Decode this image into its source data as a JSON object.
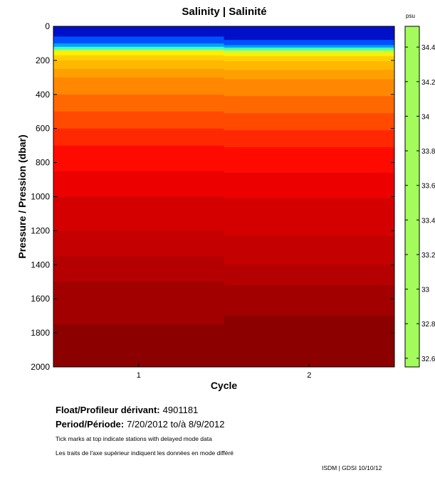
{
  "title": "Salinity | Salinité",
  "info": {
    "float_label": "Float/Profileur dérivant:",
    "float_id": "4901181",
    "period_label": "Period/Période:",
    "period_value": "7/20/2012  to/à  8/9/2012",
    "note_en": "Tick marks at top indicate stations with delayed mode data",
    "note_fr": "Les traits de l'axe supérieur indiquent les données en mode différé",
    "credit": "ISDM | GDSI  10/10/12"
  },
  "colorbar": {
    "unit": "psu",
    "tick_labels": [
      "34.4",
      "34.2",
      "34",
      "33.8",
      "33.6",
      "33.4",
      "33.2",
      "33",
      "32.8",
      "32.6"
    ],
    "tick_values": [
      34.4,
      34.2,
      34.0,
      33.8,
      33.6,
      33.4,
      33.2,
      33.0,
      32.8,
      32.6
    ],
    "range": [
      32.55,
      34.52
    ],
    "fill_color": "#a4fb5c"
  },
  "chart_data": {
    "type": "heatmap",
    "title": "Salinity | Salinité",
    "xlabel": "Cycle",
    "ylabel": "Pressure / Pression (dbar)",
    "x_categories": [
      "1",
      "2"
    ],
    "y_ticks": [
      0,
      200,
      400,
      600,
      800,
      1000,
      1200,
      1400,
      1600,
      1800,
      2000
    ],
    "ylim": [
      0,
      2000
    ],
    "y_reversed": true,
    "colormap": "jet",
    "profiles": [
      {
        "cycle": "1",
        "layers": [
          {
            "top": 0,
            "bottom": 60,
            "color": "#0010c8"
          },
          {
            "top": 60,
            "bottom": 100,
            "color": "#0050ff"
          },
          {
            "top": 100,
            "bottom": 120,
            "color": "#00a0ff"
          },
          {
            "top": 120,
            "bottom": 135,
            "color": "#40ffc0"
          },
          {
            "top": 135,
            "bottom": 150,
            "color": "#c0ff40"
          },
          {
            "top": 150,
            "bottom": 170,
            "color": "#fff000"
          },
          {
            "top": 170,
            "bottom": 200,
            "color": "#ffd000"
          },
          {
            "top": 200,
            "bottom": 250,
            "color": "#ffb800"
          },
          {
            "top": 250,
            "bottom": 300,
            "color": "#ffa000"
          },
          {
            "top": 300,
            "bottom": 400,
            "color": "#ff8800"
          },
          {
            "top": 400,
            "bottom": 500,
            "color": "#ff6800"
          },
          {
            "top": 500,
            "bottom": 600,
            "color": "#ff4a00"
          },
          {
            "top": 600,
            "bottom": 700,
            "color": "#ff2800"
          },
          {
            "top": 700,
            "bottom": 850,
            "color": "#ff0a00"
          },
          {
            "top": 850,
            "bottom": 1000,
            "color": "#ec0000"
          },
          {
            "top": 1000,
            "bottom": 1200,
            "color": "#d40000"
          },
          {
            "top": 1200,
            "bottom": 1350,
            "color": "#c40000"
          },
          {
            "top": 1350,
            "bottom": 1500,
            "color": "#b40000"
          },
          {
            "top": 1500,
            "bottom": 1750,
            "color": "#a20000"
          },
          {
            "top": 1750,
            "bottom": 2000,
            "color": "#8c0000"
          }
        ]
      },
      {
        "cycle": "2",
        "layers": [
          {
            "top": 0,
            "bottom": 80,
            "color": "#0010c8"
          },
          {
            "top": 80,
            "bottom": 110,
            "color": "#0050ff"
          },
          {
            "top": 110,
            "bottom": 125,
            "color": "#00a0ff"
          },
          {
            "top": 125,
            "bottom": 140,
            "color": "#40ffc0"
          },
          {
            "top": 140,
            "bottom": 155,
            "color": "#c0ff40"
          },
          {
            "top": 155,
            "bottom": 175,
            "color": "#fff000"
          },
          {
            "top": 175,
            "bottom": 205,
            "color": "#ffd000"
          },
          {
            "top": 205,
            "bottom": 255,
            "color": "#ffb800"
          },
          {
            "top": 255,
            "bottom": 310,
            "color": "#ffa000"
          },
          {
            "top": 310,
            "bottom": 410,
            "color": "#ff8800"
          },
          {
            "top": 410,
            "bottom": 510,
            "color": "#ff6800"
          },
          {
            "top": 510,
            "bottom": 610,
            "color": "#ff4a00"
          },
          {
            "top": 610,
            "bottom": 710,
            "color": "#ff2800"
          },
          {
            "top": 710,
            "bottom": 860,
            "color": "#ff0a00"
          },
          {
            "top": 860,
            "bottom": 1010,
            "color": "#ec0000"
          },
          {
            "top": 1010,
            "bottom": 1230,
            "color": "#d40000"
          },
          {
            "top": 1230,
            "bottom": 1400,
            "color": "#c40000"
          },
          {
            "top": 1400,
            "bottom": 1520,
            "color": "#b40000"
          },
          {
            "top": 1520,
            "bottom": 1700,
            "color": "#a20000"
          },
          {
            "top": 1700,
            "bottom": 2000,
            "color": "#8c0000"
          }
        ]
      }
    ]
  }
}
